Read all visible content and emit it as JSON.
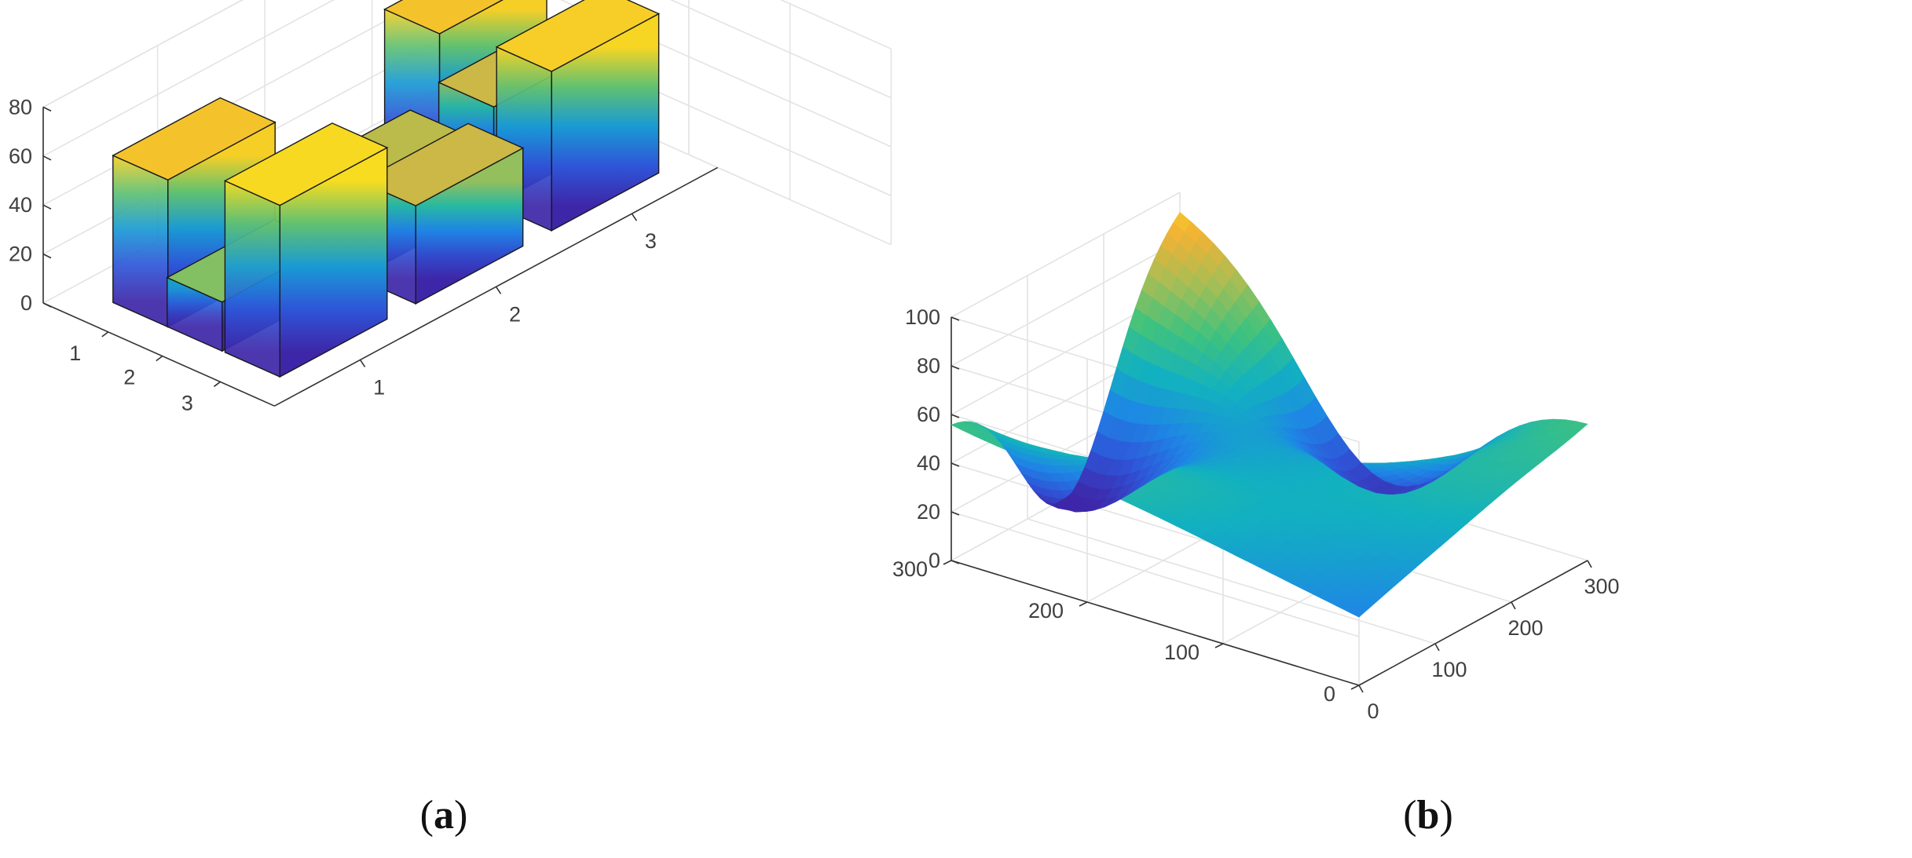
{
  "panels": [
    {
      "id": "a",
      "caption": "a"
    },
    {
      "id": "b",
      "caption": "b"
    }
  ],
  "colors": {
    "parula": [
      "#3e26a8",
      "#2e56d9",
      "#1e87e5",
      "#12b1c0",
      "#3fc27e",
      "#a4be56",
      "#f2b235",
      "#f9e71a"
    ],
    "axis": "#333333",
    "grid": "#e3e3e3"
  },
  "chart_data": [
    {
      "type": "bar",
      "subtype": "bar3",
      "panel": "a",
      "x_categories": [
        "1",
        "2",
        "3"
      ],
      "y_categories": [
        "1",
        "2",
        "3"
      ],
      "zlim": [
        0,
        80
      ],
      "z_ticks": [
        "0",
        "20",
        "40",
        "60",
        "80"
      ],
      "grid": true,
      "bars": [
        {
          "x": "1",
          "y": "1",
          "value": 60
        },
        {
          "x": "2",
          "y": "1",
          "value": 20
        },
        {
          "x": "3",
          "y": "1",
          "value": 70
        },
        {
          "x": "1",
          "y": "2",
          "value": 5
        },
        {
          "x": "2",
          "y": "2",
          "value": 35
        },
        {
          "x": "3",
          "y": "2",
          "value": 40
        },
        {
          "x": "1",
          "y": "3",
          "value": 60
        },
        {
          "x": "2",
          "y": "3",
          "value": 40
        },
        {
          "x": "3",
          "y": "3",
          "value": 65
        }
      ]
    },
    {
      "type": "area",
      "subtype": "surface",
      "panel": "b",
      "xlim": [
        0,
        300
      ],
      "ylim": [
        0,
        300
      ],
      "zlim": [
        0,
        100
      ],
      "x_ticks": [
        "0",
        "100",
        "200",
        "300"
      ],
      "y_ticks": [
        "0",
        "100",
        "200",
        "300"
      ],
      "z_ticks": [
        "0",
        "20",
        "40",
        "60",
        "80",
        "100"
      ],
      "grid": true,
      "corner_values": {
        "x0_y0": 28,
        "x300_y0": 60,
        "x0_y300": 60,
        "x300_y300": 100
      },
      "features": [
        {
          "kind": "peak",
          "x": 300,
          "y": 300,
          "z": 100
        },
        {
          "kind": "peak",
          "x": 150,
          "y": 150,
          "z": 48
        },
        {
          "kind": "trough",
          "x": 150,
          "y": 300,
          "z": 0
        },
        {
          "kind": "trough",
          "x": 300,
          "y": 150,
          "z": 8
        },
        {
          "kind": "trough",
          "x": 0,
          "y": 150,
          "z": 45
        }
      ]
    }
  ]
}
